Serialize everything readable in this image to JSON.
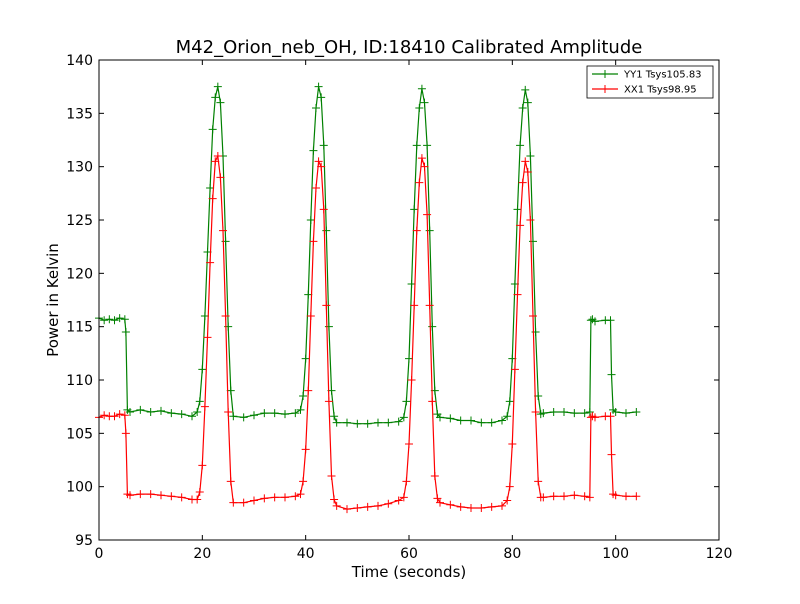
{
  "chart_data": {
    "type": "line",
    "title": "M42_Orion_neb_OH, ID:18410 Calibrated Amplitude",
    "xlabel": "Time (seconds)",
    "ylabel": "Power in Kelvin",
    "xlim": [
      0,
      120
    ],
    "ylim": [
      95,
      140
    ],
    "xticks": [
      0,
      20,
      40,
      60,
      80,
      100,
      120
    ],
    "yticks": [
      95,
      100,
      105,
      110,
      115,
      120,
      125,
      130,
      135,
      140
    ],
    "grid": false,
    "legend_position": "top-right",
    "series": [
      {
        "name": "YY1 Tsys105.83",
        "color": "#008000",
        "marker": "plus",
        "x": [
          0,
          1,
          2,
          3,
          4,
          5,
          5.2,
          5.5,
          6,
          8,
          10,
          12,
          14,
          16,
          18,
          19,
          19.5,
          20,
          20.5,
          21,
          21.5,
          22,
          22.5,
          23,
          23.5,
          24,
          24.5,
          25,
          25.5,
          26,
          28,
          30,
          32,
          34,
          36,
          38,
          39,
          39.5,
          40,
          40.5,
          41,
          41.5,
          42,
          42.5,
          43,
          43.5,
          44,
          44.5,
          45,
          45.5,
          46,
          48,
          50,
          52,
          54,
          56,
          58,
          59,
          59.5,
          60,
          60.5,
          61,
          61.5,
          62,
          62.5,
          63,
          63.5,
          64,
          64.5,
          65,
          65.5,
          66,
          68,
          70,
          72,
          74,
          76,
          78,
          79,
          79.5,
          80,
          80.5,
          81,
          81.5,
          82,
          82.5,
          83,
          83.5,
          84,
          84.5,
          85,
          85.5,
          86,
          88,
          90,
          92,
          94,
          95,
          95.2,
          95.5,
          96,
          98,
          99,
          99.2,
          99.5,
          100,
          102,
          104
        ],
        "y": [
          115.8,
          115.6,
          115.7,
          115.6,
          115.8,
          115.7,
          114.5,
          107.2,
          107.0,
          107.2,
          107.0,
          107.1,
          106.9,
          106.8,
          106.6,
          107.0,
          108.0,
          111.0,
          116.0,
          122.0,
          128.0,
          133.5,
          136.5,
          137.5,
          136.0,
          131.0,
          123.0,
          115.0,
          109.0,
          106.6,
          106.5,
          106.7,
          106.9,
          106.9,
          106.8,
          106.9,
          107.2,
          108.5,
          112.0,
          118.0,
          125.0,
          131.5,
          135.5,
          137.5,
          136.5,
          132.0,
          124.0,
          115.0,
          109.0,
          106.6,
          106.0,
          106.0,
          105.9,
          105.9,
          106.0,
          106.0,
          106.1,
          106.5,
          108.0,
          112.0,
          119.0,
          126.0,
          132.0,
          135.5,
          137.3,
          136.0,
          132.0,
          124.0,
          115.0,
          109.0,
          106.8,
          106.5,
          106.4,
          106.2,
          106.2,
          106.0,
          106.0,
          106.2,
          106.6,
          108.0,
          112.0,
          119.0,
          126.0,
          132.0,
          135.5,
          137.2,
          136.0,
          131.0,
          123.0,
          114.5,
          108.5,
          106.8,
          106.9,
          107.0,
          107.0,
          106.9,
          106.9,
          107.0,
          115.6,
          115.7,
          115.5,
          115.6,
          115.6,
          110.5,
          107.2,
          107.0,
          106.9,
          107.0
        ]
      },
      {
        "name": "XX1 Tsys98.95",
        "color": "#ff0000",
        "marker": "plus",
        "x": [
          0,
          1,
          2,
          3,
          4,
          5,
          5.2,
          5.5,
          6,
          8,
          10,
          12,
          14,
          16,
          18,
          19,
          19.5,
          20,
          20.5,
          21,
          21.5,
          22,
          22.5,
          23,
          23.5,
          24,
          24.5,
          25,
          25.5,
          26,
          28,
          30,
          32,
          34,
          36,
          38,
          39,
          39.5,
          40,
          40.5,
          41,
          41.5,
          42,
          42.5,
          43,
          43.5,
          44,
          44.5,
          45,
          45.5,
          46,
          48,
          50,
          52,
          54,
          56,
          58,
          59,
          59.5,
          60,
          60.5,
          61,
          61.5,
          62,
          62.5,
          63,
          63.5,
          64,
          64.5,
          65,
          65.5,
          66,
          68,
          70,
          72,
          74,
          76,
          78,
          79,
          79.5,
          80,
          80.5,
          81,
          81.5,
          82,
          82.5,
          83,
          83.5,
          84,
          84.5,
          85,
          85.5,
          86,
          88,
          90,
          92,
          94,
          95,
          95.2,
          95.5,
          96,
          98,
          99,
          99.2,
          99.5,
          100,
          102,
          104
        ],
        "y": [
          106.5,
          106.7,
          106.6,
          106.6,
          106.8,
          106.7,
          105.0,
          99.3,
          99.2,
          99.3,
          99.3,
          99.2,
          99.1,
          99.0,
          98.8,
          98.8,
          99.5,
          102.0,
          107.5,
          114.0,
          121.0,
          127.0,
          130.5,
          131.0,
          129.0,
          124.0,
          116.0,
          107.0,
          100.5,
          98.5,
          98.5,
          98.7,
          98.9,
          99.0,
          99.0,
          99.1,
          99.3,
          100.5,
          103.5,
          109.0,
          116.0,
          123.0,
          128.0,
          130.5,
          130.0,
          126.0,
          117.0,
          108.0,
          101.0,
          98.8,
          98.2,
          97.9,
          98.0,
          98.1,
          98.2,
          98.4,
          98.7,
          99.0,
          100.5,
          104.0,
          110.0,
          117.0,
          124.0,
          128.5,
          130.8,
          130.0,
          125.5,
          117.0,
          108.0,
          101.0,
          98.9,
          98.5,
          98.3,
          98.1,
          98.0,
          98.0,
          98.1,
          98.2,
          98.7,
          100.0,
          104.0,
          111.0,
          118.0,
          124.5,
          128.5,
          130.5,
          129.5,
          125.0,
          116.0,
          107.0,
          100.5,
          99.0,
          99.0,
          99.1,
          99.1,
          99.2,
          99.1,
          99.0,
          106.5,
          106.6,
          106.5,
          106.6,
          106.6,
          103.0,
          99.3,
          99.2,
          99.1,
          99.1
        ]
      }
    ]
  }
}
